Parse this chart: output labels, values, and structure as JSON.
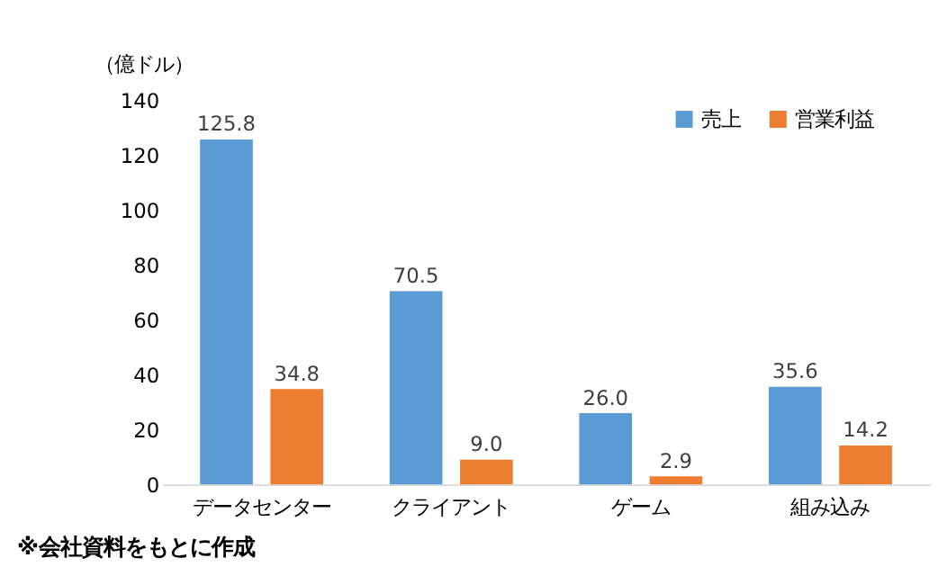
{
  "chart_data": {
    "type": "bar",
    "ylabel": "（億ドル）",
    "categories": [
      "データセンター",
      "クライアント",
      "ゲーム",
      "組み込み"
    ],
    "series": [
      {
        "name": "売上",
        "color": "#5b9bd5",
        "values": [
          125.8,
          70.5,
          26.0,
          35.6
        ]
      },
      {
        "name": "営業利益",
        "color": "#ed7d31",
        "values": [
          34.8,
          9.0,
          2.9,
          14.2
        ]
      }
    ],
    "value_labels": [
      [
        "125.8",
        "70.5",
        "26.0",
        "35.6"
      ],
      [
        "34.8",
        "9.0",
        "2.9",
        "14.2"
      ]
    ],
    "ylim": [
      0,
      140
    ],
    "yticks": [
      0,
      20,
      40,
      60,
      80,
      100,
      120,
      140
    ],
    "grid": false,
    "legend": "top right",
    "annotations": [
      "※会社資料をもとに作成"
    ]
  }
}
